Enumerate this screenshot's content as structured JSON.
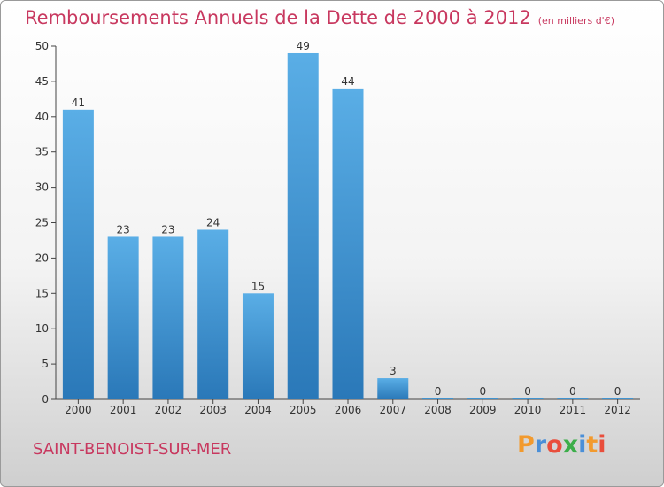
{
  "header": {
    "title": "Remboursements Annuels de la Dette de 2000 à 2012",
    "unit_note": "(en milliers d'€)"
  },
  "footer": {
    "commune": "SAINT-BENOIST-SUR-MER",
    "logo_text": "Proxiti",
    "logo_colors": [
      "#f29a2e",
      "#4a8fd8",
      "#e94e3c",
      "#3cae4a",
      "#4a8fd8",
      "#f29a2e",
      "#e94e3c"
    ]
  },
  "colors": {
    "bar_top": "#5aaee6",
    "bar_bottom": "#2a78b8",
    "title": "#c8385f",
    "axis_text": "#333333"
  },
  "chart_data": {
    "type": "bar",
    "title": "Remboursements Annuels de la Dette de 2000 à 2012",
    "categories": [
      "2000",
      "2001",
      "2002",
      "2003",
      "2004",
      "2005",
      "2006",
      "2007",
      "2008",
      "2009",
      "2010",
      "2011",
      "2012"
    ],
    "values": [
      41,
      23,
      23,
      24,
      15,
      49,
      44,
      3,
      0,
      0,
      0,
      0,
      0
    ],
    "value_labels": [
      "41",
      "23",
      "23",
      "24",
      "15",
      "49",
      "44",
      "3",
      "0",
      "0",
      "0",
      "0",
      "0"
    ],
    "ylim": [
      0,
      50
    ],
    "yticks": [
      0,
      5,
      10,
      15,
      20,
      25,
      30,
      35,
      40,
      45,
      50
    ],
    "ytick_labels": [
      "0",
      "5",
      "10",
      "15",
      "20",
      "25",
      "30",
      "35",
      "40",
      "45",
      "50"
    ],
    "grid": false,
    "legend": "none"
  }
}
